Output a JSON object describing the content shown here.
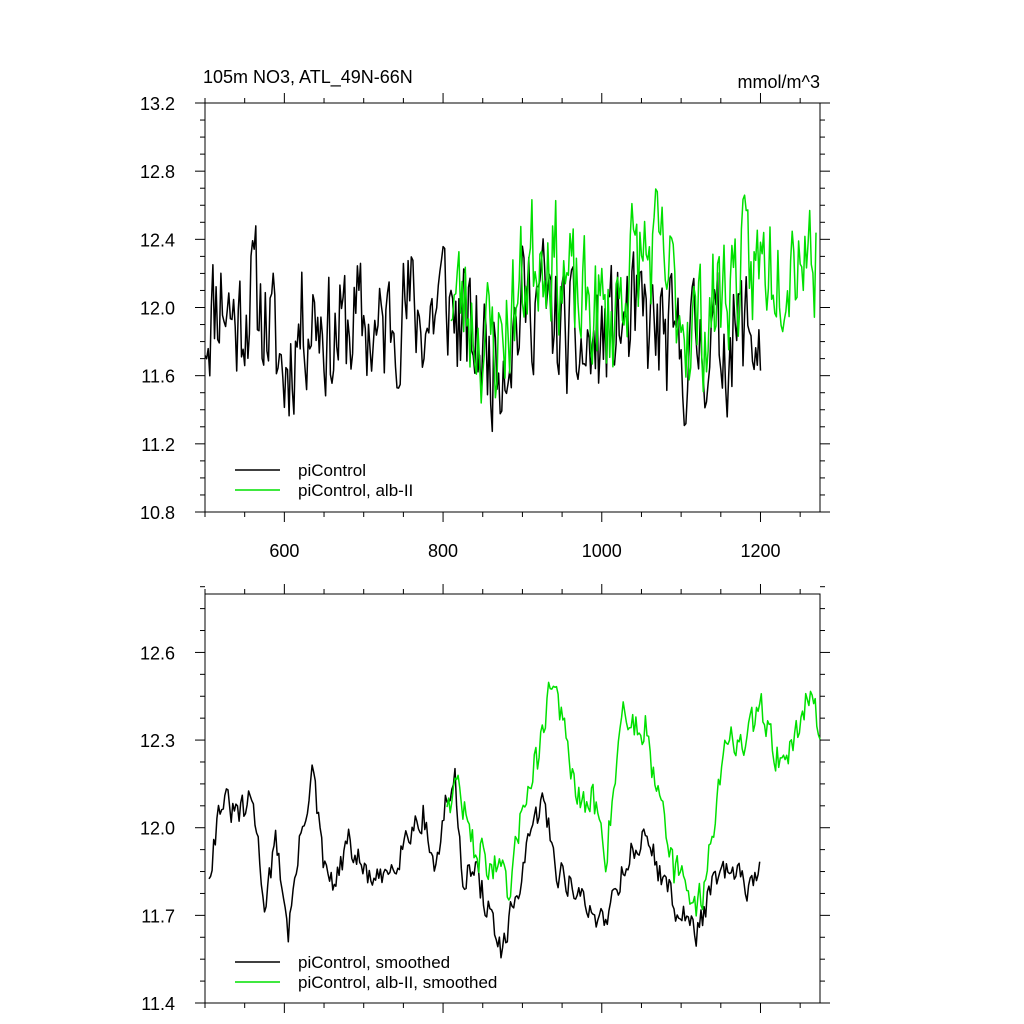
{
  "colors": {
    "picontrol": "#000000",
    "alb": "#00e000"
  },
  "chart_data": [
    {
      "type": "line",
      "title": "105m NO3, ATL_49N-66N",
      "units": "mmol/m^3",
      "xlim": [
        500,
        1275
      ],
      "ylim": [
        10.8,
        13.2
      ],
      "x_ticks": [
        600,
        800,
        1000,
        1200
      ],
      "x_tick_labels": [
        "600",
        "800",
        "1000",
        "1200"
      ],
      "y_ticks": [
        10.8,
        11.2,
        11.6,
        12.0,
        12.4,
        12.8,
        13.2
      ],
      "y_tick_labels": [
        "10.8",
        "11.2",
        "11.6",
        "12.0",
        "12.4",
        "12.8",
        "13.2"
      ],
      "legend_position": "bottom-left",
      "series": [
        {
          "name": "piControl",
          "color": "#000000",
          "x": [
            500,
            520,
            540,
            560,
            580,
            600,
            620,
            640,
            660,
            680,
            700,
            720,
            740,
            760,
            780,
            800,
            820,
            840,
            860,
            880,
            900,
            920,
            940,
            960,
            980,
            1000,
            1020,
            1040,
            1060,
            1080,
            1100,
            1120,
            1140,
            1160,
            1180,
            1200
          ],
          "y": [
            11.9,
            12.1,
            11.9,
            12.1,
            11.9,
            11.6,
            11.9,
            12.0,
            11.8,
            11.9,
            11.9,
            11.8,
            12.0,
            12.0,
            11.9,
            12.1,
            11.9,
            11.8,
            11.7,
            11.8,
            12.0,
            12.1,
            11.9,
            11.8,
            11.7,
            11.8,
            11.9,
            11.9,
            11.9,
            11.8,
            11.7,
            11.8,
            11.8,
            11.8,
            11.9,
            11.8
          ],
          "noise": 0.35,
          "seed": 11
        },
        {
          "name": "piControl, alb-II",
          "color": "#00e000",
          "x": [
            810,
            830,
            850,
            870,
            890,
            910,
            930,
            950,
            970,
            990,
            1010,
            1030,
            1050,
            1070,
            1090,
            1110,
            1130,
            1150,
            1170,
            1190,
            1210,
            1230,
            1250,
            1270
          ],
          "y": [
            12.1,
            12.0,
            11.8,
            11.8,
            12.0,
            12.3,
            12.4,
            12.2,
            12.0,
            12.0,
            11.9,
            12.2,
            12.3,
            12.3,
            12.1,
            11.9,
            11.9,
            12.1,
            12.2,
            12.2,
            12.3,
            12.3,
            12.4,
            12.3
          ],
          "noise": 0.35,
          "seed": 23
        }
      ]
    },
    {
      "type": "line",
      "title": "",
      "units": "",
      "xlim": [
        500,
        1275
      ],
      "ylim": [
        11.4,
        12.8
      ],
      "x_ticks": [
        600,
        800,
        1000,
        1200
      ],
      "x_tick_labels": [],
      "y_ticks": [
        11.4,
        11.7,
        12.0,
        12.3,
        12.6
      ],
      "y_tick_labels": [
        "11.4",
        "11.7",
        "12.0",
        "12.3",
        "12.6"
      ],
      "legend_position": "bottom-left",
      "series": [
        {
          "name": "piControl, smoothed",
          "color": "#000000",
          "x": [
            505,
            520,
            535,
            550,
            560,
            575,
            590,
            605,
            620,
            635,
            650,
            665,
            680,
            700,
            720,
            740,
            760,
            775,
            790,
            805,
            815,
            825,
            840,
            860,
            875,
            890,
            905,
            925,
            945,
            965,
            985,
            1005,
            1025,
            1045,
            1060,
            1080,
            1100,
            1120,
            1140,
            1160,
            1180,
            1200
          ],
          "y": [
            11.85,
            12.1,
            12.05,
            12.05,
            12.1,
            11.75,
            11.95,
            11.65,
            11.95,
            12.2,
            11.85,
            11.8,
            11.95,
            11.85,
            11.8,
            11.9,
            12.0,
            12.05,
            11.85,
            12.1,
            12.15,
            11.85,
            11.85,
            11.7,
            11.55,
            11.75,
            11.9,
            12.1,
            11.85,
            11.8,
            11.7,
            11.7,
            11.85,
            11.95,
            11.95,
            11.8,
            11.7,
            11.65,
            11.8,
            11.85,
            11.8,
            11.85
          ],
          "noise": 0.05,
          "seed": 31
        },
        {
          "name": "piControl, alb-II, smoothed",
          "color": "#00e000",
          "x": [
            805,
            820,
            835,
            850,
            870,
            885,
            900,
            920,
            935,
            945,
            960,
            975,
            990,
            1005,
            1015,
            1025,
            1040,
            1055,
            1065,
            1075,
            1090,
            1105,
            1115,
            1125,
            1140,
            1160,
            1175,
            1190,
            1205,
            1220,
            1235,
            1250,
            1260,
            1275
          ],
          "y": [
            12.1,
            12.15,
            11.95,
            11.9,
            11.85,
            11.75,
            12.1,
            12.25,
            12.5,
            12.45,
            12.2,
            12.05,
            12.1,
            11.9,
            12.15,
            12.4,
            12.35,
            12.35,
            12.2,
            12.15,
            11.85,
            11.8,
            11.75,
            11.75,
            12.0,
            12.35,
            12.25,
            12.35,
            12.4,
            12.25,
            12.25,
            12.35,
            12.5,
            12.3
          ],
          "noise": 0.06,
          "seed": 47
        }
      ]
    }
  ]
}
